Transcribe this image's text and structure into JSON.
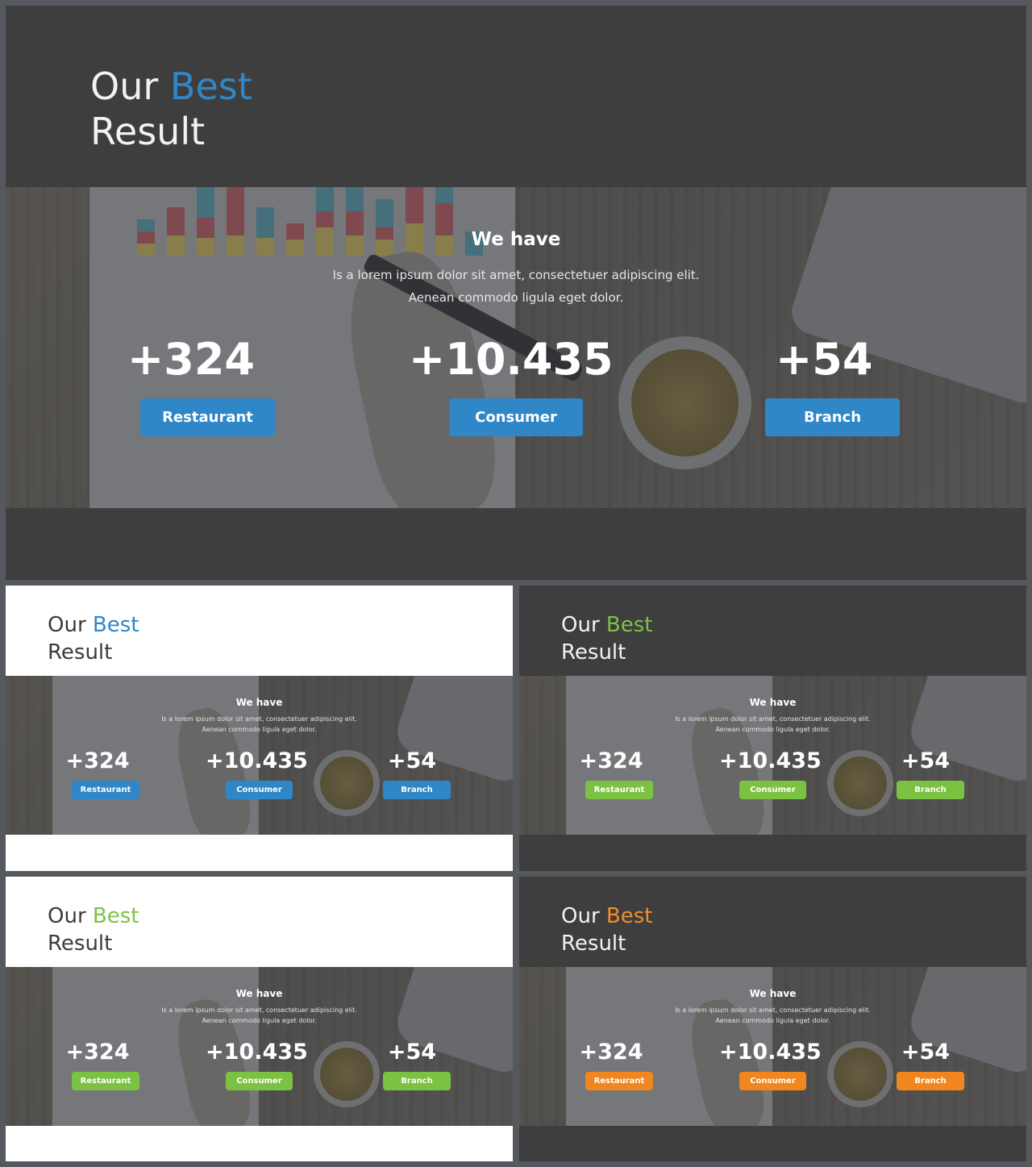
{
  "slide": {
    "title_word1": "Our",
    "title_word2": "Best",
    "title_word3": "Result",
    "heading": "We have",
    "desc_line1": "Is a lorem ipsum dolor sit amet, consectetuer adipiscing elit.",
    "desc_line2": "Aenean commodo ligula eget dolor.",
    "stats": [
      {
        "value": "+324",
        "label": "Restaurant"
      },
      {
        "value": "+10.435",
        "label": "Consumer"
      },
      {
        "value": "+54",
        "label": "Branch"
      }
    ]
  },
  "variants": [
    {
      "theme": "dark",
      "accent": "#2f87c8"
    },
    {
      "theme": "light",
      "accent": "#2f87c8"
    },
    {
      "theme": "dark",
      "accent": "#7cc242"
    },
    {
      "theme": "light",
      "accent": "#7cc242"
    },
    {
      "theme": "dark",
      "accent": "#f28c28"
    }
  ]
}
